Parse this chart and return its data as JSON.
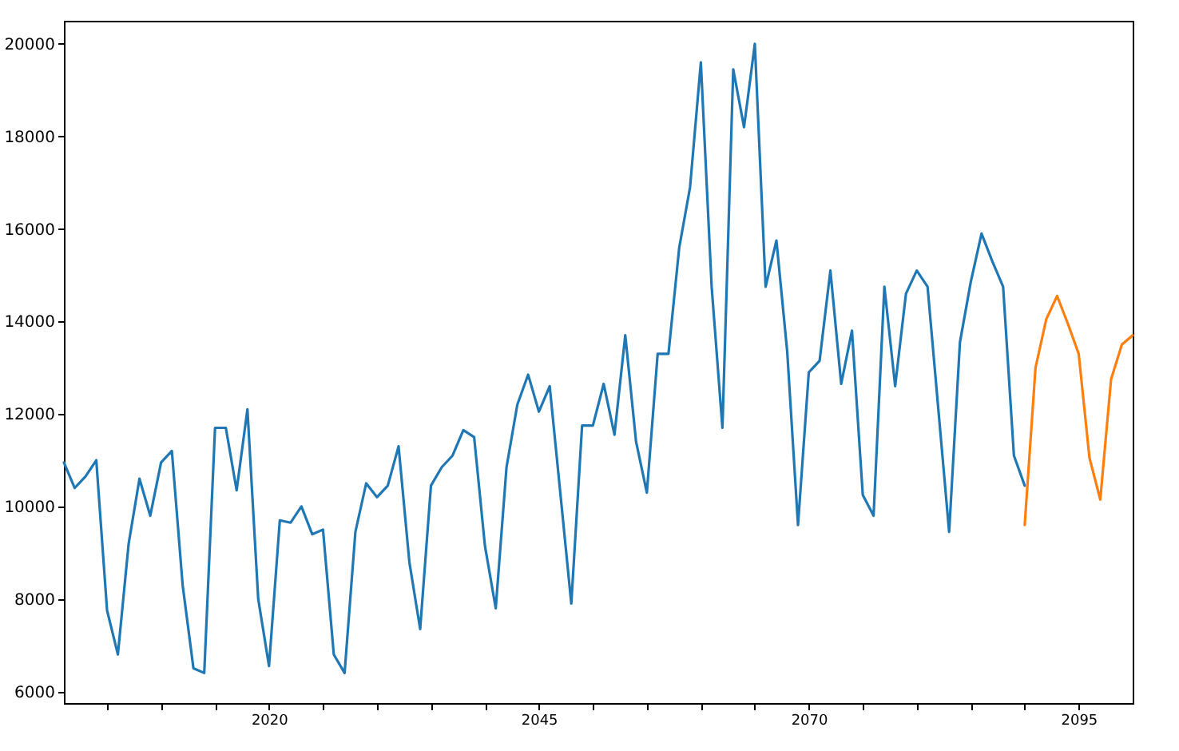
{
  "chart_data": {
    "type": "line",
    "xlim": [
      2001,
      2100
    ],
    "xticks": [
      {
        "value": 2005,
        "label": null
      },
      {
        "value": 2010,
        "label": null
      },
      {
        "value": 2015,
        "label": null
      },
      2020,
      {
        "value": 2025,
        "label": null
      },
      {
        "value": 2030,
        "label": null
      },
      {
        "value": 2035,
        "label": null
      },
      {
        "value": 2040,
        "label": null
      },
      2045,
      {
        "value": 2050,
        "label": null
      },
      {
        "value": 2055,
        "label": null
      },
      {
        "value": 2060,
        "label": null
      },
      {
        "value": 2065,
        "label": null
      },
      2070,
      {
        "value": 2075,
        "label": null
      },
      {
        "value": 2080,
        "label": null
      },
      {
        "value": 2085,
        "label": null
      },
      {
        "value": 2090,
        "label": null
      },
      2095
    ],
    "ylim": [
      5750,
      20500
    ],
    "yticks": [
      6000,
      8000,
      10000,
      12000,
      14000,
      16000,
      18000,
      20000
    ],
    "series": [
      {
        "color": "#1f77b4",
        "x": [
          2001,
          2002,
          2003,
          2004,
          2005,
          2006,
          2007,
          2008,
          2009,
          2010,
          2011,
          2012,
          2013,
          2014,
          2015,
          2016,
          2017,
          2018,
          2019,
          2020,
          2021,
          2022,
          2023,
          2024,
          2025,
          2026,
          2027,
          2028,
          2029,
          2030,
          2031,
          2032,
          2033,
          2034,
          2035,
          2036,
          2037,
          2038,
          2039,
          2040,
          2041,
          2042,
          2043,
          2044,
          2045,
          2046,
          2047,
          2048,
          2049,
          2050,
          2051,
          2052,
          2053,
          2054,
          2055,
          2056,
          2057,
          2058,
          2059,
          2060,
          2061,
          2062,
          2063,
          2064,
          2065,
          2066,
          2067,
          2068,
          2069,
          2070,
          2071,
          2072,
          2073,
          2074,
          2075,
          2076,
          2077,
          2078,
          2079,
          2080,
          2081,
          2082,
          2083,
          2084,
          2085,
          2086,
          2087,
          2088,
          2089,
          2090
        ],
        "values": [
          10950,
          10400,
          10650,
          11000,
          7750,
          6800,
          9200,
          10600,
          9800,
          10950,
          11200,
          8300,
          6500,
          6400,
          11700,
          11700,
          10350,
          12100,
          8000,
          6550,
          9700,
          9650,
          10000,
          9400,
          9500,
          6800,
          6400,
          9450,
          10500,
          10200,
          10450,
          11300,
          8800,
          7350,
          10450,
          10850,
          11100,
          11650,
          11500,
          9150,
          7800,
          10850,
          12200,
          12850,
          12050,
          12600,
          10250,
          7900,
          11750,
          11750,
          12650,
          11550,
          13700,
          11400,
          10300,
          13300,
          13300,
          15600,
          16900,
          19600,
          14750,
          11700,
          19450,
          18200,
          20000,
          14750,
          15750,
          13350,
          9600,
          12900,
          13150,
          15100,
          12650,
          13800,
          10250,
          9800,
          14750,
          12600,
          14600,
          15100,
          14750,
          12100,
          9450,
          13550,
          14850,
          15900,
          15300,
          14750,
          11100,
          10450
        ]
      },
      {
        "color": "#ff7f0e",
        "x": [
          2090,
          2091,
          2092,
          2093,
          2094,
          2095,
          2096,
          2097,
          2098,
          2099,
          2100
        ],
        "values": [
          9600,
          13000,
          14050,
          14550,
          13950,
          13300,
          11050,
          10150,
          12750,
          13500,
          13700
        ]
      }
    ]
  }
}
